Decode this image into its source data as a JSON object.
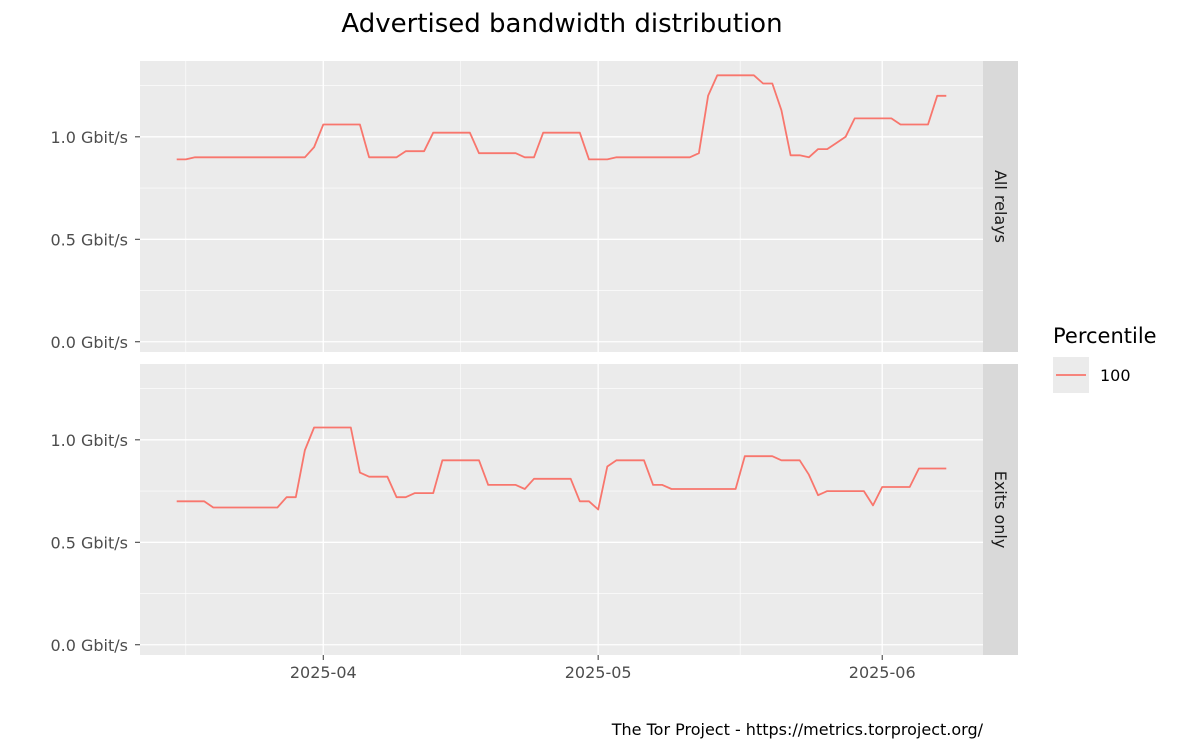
{
  "chart_data": {
    "type": "line",
    "title": "Advertised bandwidth distribution",
    "caption": "The Tor Project - https://metrics.torproject.org/",
    "x_unit": "date",
    "y_unit": "Gbit/s",
    "xlim": [
      "2025-03-12",
      "2025-06-12"
    ],
    "ylim": [
      -0.05,
      1.37
    ],
    "x_ticks": [
      "2025-04-01",
      "2025-05-01",
      "2025-06-01"
    ],
    "x_tick_labels": [
      "2025-04",
      "2025-05",
      "2025-06"
    ],
    "y_ticks": [
      0.0,
      0.5,
      1.0
    ],
    "y_tick_labels": [
      "0.0 Gbit/s",
      "0.5 Gbit/s",
      "1.0 Gbit/s"
    ],
    "grid": true,
    "legend": {
      "title": "Percentile",
      "position": "right",
      "entries": [
        "100"
      ]
    },
    "colors": {
      "series": "#f8766d",
      "panel": "#ebebeb",
      "strip": "#d9d9d9",
      "grid": "#ffffff"
    },
    "facets": [
      {
        "label": "All relays",
        "series": [
          {
            "name": "100",
            "points": [
              [
                "2025-03-16",
                0.89
              ],
              [
                "2025-03-17",
                0.89
              ],
              [
                "2025-03-18",
                0.9
              ],
              [
                "2025-03-19",
                0.9
              ],
              [
                "2025-03-20",
                0.9
              ],
              [
                "2025-03-21",
                0.9
              ],
              [
                "2025-03-22",
                0.9
              ],
              [
                "2025-03-23",
                0.9
              ],
              [
                "2025-03-24",
                0.9
              ],
              [
                "2025-03-25",
                0.9
              ],
              [
                "2025-03-26",
                0.9
              ],
              [
                "2025-03-27",
                0.9
              ],
              [
                "2025-03-28",
                0.9
              ],
              [
                "2025-03-29",
                0.9
              ],
              [
                "2025-03-30",
                0.9
              ],
              [
                "2025-03-31",
                0.95
              ],
              [
                "2025-04-01",
                1.06
              ],
              [
                "2025-04-02",
                1.06
              ],
              [
                "2025-04-03",
                1.06
              ],
              [
                "2025-04-04",
                1.06
              ],
              [
                "2025-04-05",
                1.06
              ],
              [
                "2025-04-06",
                0.9
              ],
              [
                "2025-04-07",
                0.9
              ],
              [
                "2025-04-08",
                0.9
              ],
              [
                "2025-04-09",
                0.9
              ],
              [
                "2025-04-10",
                0.93
              ],
              [
                "2025-04-11",
                0.93
              ],
              [
                "2025-04-12",
                0.93
              ],
              [
                "2025-04-13",
                1.02
              ],
              [
                "2025-04-14",
                1.02
              ],
              [
                "2025-04-15",
                1.02
              ],
              [
                "2025-04-16",
                1.02
              ],
              [
                "2025-04-17",
                1.02
              ],
              [
                "2025-04-18",
                0.92
              ],
              [
                "2025-04-19",
                0.92
              ],
              [
                "2025-04-20",
                0.92
              ],
              [
                "2025-04-21",
                0.92
              ],
              [
                "2025-04-22",
                0.92
              ],
              [
                "2025-04-23",
                0.9
              ],
              [
                "2025-04-24",
                0.9
              ],
              [
                "2025-04-25",
                1.02
              ],
              [
                "2025-04-26",
                1.02
              ],
              [
                "2025-04-27",
                1.02
              ],
              [
                "2025-04-28",
                1.02
              ],
              [
                "2025-04-29",
                1.02
              ],
              [
                "2025-04-30",
                0.89
              ],
              [
                "2025-05-01",
                0.89
              ],
              [
                "2025-05-02",
                0.89
              ],
              [
                "2025-05-03",
                0.9
              ],
              [
                "2025-05-04",
                0.9
              ],
              [
                "2025-05-05",
                0.9
              ],
              [
                "2025-05-06",
                0.9
              ],
              [
                "2025-05-07",
                0.9
              ],
              [
                "2025-05-08",
                0.9
              ],
              [
                "2025-05-09",
                0.9
              ],
              [
                "2025-05-10",
                0.9
              ],
              [
                "2025-05-11",
                0.9
              ],
              [
                "2025-05-12",
                0.92
              ],
              [
                "2025-05-13",
                1.2
              ],
              [
                "2025-05-14",
                1.3
              ],
              [
                "2025-05-15",
                1.3
              ],
              [
                "2025-05-16",
                1.3
              ],
              [
                "2025-05-17",
                1.3
              ],
              [
                "2025-05-18",
                1.3
              ],
              [
                "2025-05-19",
                1.26
              ],
              [
                "2025-05-20",
                1.26
              ],
              [
                "2025-05-21",
                1.13
              ],
              [
                "2025-05-22",
                0.91
              ],
              [
                "2025-05-23",
                0.91
              ],
              [
                "2025-05-24",
                0.9
              ],
              [
                "2025-05-25",
                0.94
              ],
              [
                "2025-05-26",
                0.94
              ],
              [
                "2025-05-27",
                0.97
              ],
              [
                "2025-05-28",
                1.0
              ],
              [
                "2025-05-29",
                1.09
              ],
              [
                "2025-05-30",
                1.09
              ],
              [
                "2025-05-31",
                1.09
              ],
              [
                "2025-06-01",
                1.09
              ],
              [
                "2025-06-02",
                1.09
              ],
              [
                "2025-06-03",
                1.06
              ],
              [
                "2025-06-04",
                1.06
              ],
              [
                "2025-06-05",
                1.06
              ],
              [
                "2025-06-06",
                1.06
              ],
              [
                "2025-06-07",
                1.2
              ],
              [
                "2025-06-08",
                1.2
              ]
            ]
          }
        ]
      },
      {
        "label": "Exits only",
        "series": [
          {
            "name": "100",
            "points": [
              [
                "2025-03-16",
                0.7
              ],
              [
                "2025-03-17",
                0.7
              ],
              [
                "2025-03-18",
                0.7
              ],
              [
                "2025-03-19",
                0.7
              ],
              [
                "2025-03-20",
                0.67
              ],
              [
                "2025-03-21",
                0.67
              ],
              [
                "2025-03-22",
                0.67
              ],
              [
                "2025-03-23",
                0.67
              ],
              [
                "2025-03-24",
                0.67
              ],
              [
                "2025-03-25",
                0.67
              ],
              [
                "2025-03-26",
                0.67
              ],
              [
                "2025-03-27",
                0.67
              ],
              [
                "2025-03-28",
                0.72
              ],
              [
                "2025-03-29",
                0.72
              ],
              [
                "2025-03-30",
                0.95
              ],
              [
                "2025-03-31",
                1.06
              ],
              [
                "2025-04-01",
                1.06
              ],
              [
                "2025-04-02",
                1.06
              ],
              [
                "2025-04-03",
                1.06
              ],
              [
                "2025-04-04",
                1.06
              ],
              [
                "2025-04-05",
                0.84
              ],
              [
                "2025-04-06",
                0.82
              ],
              [
                "2025-04-07",
                0.82
              ],
              [
                "2025-04-08",
                0.82
              ],
              [
                "2025-04-09",
                0.72
              ],
              [
                "2025-04-10",
                0.72
              ],
              [
                "2025-04-11",
                0.74
              ],
              [
                "2025-04-12",
                0.74
              ],
              [
                "2025-04-13",
                0.74
              ],
              [
                "2025-04-14",
                0.9
              ],
              [
                "2025-04-15",
                0.9
              ],
              [
                "2025-04-16",
                0.9
              ],
              [
                "2025-04-17",
                0.9
              ],
              [
                "2025-04-18",
                0.9
              ],
              [
                "2025-04-19",
                0.78
              ],
              [
                "2025-04-20",
                0.78
              ],
              [
                "2025-04-21",
                0.78
              ],
              [
                "2025-04-22",
                0.78
              ],
              [
                "2025-04-23",
                0.76
              ],
              [
                "2025-04-24",
                0.81
              ],
              [
                "2025-04-25",
                0.81
              ],
              [
                "2025-04-26",
                0.81
              ],
              [
                "2025-04-27",
                0.81
              ],
              [
                "2025-04-28",
                0.81
              ],
              [
                "2025-04-29",
                0.7
              ],
              [
                "2025-04-30",
                0.7
              ],
              [
                "2025-05-01",
                0.66
              ],
              [
                "2025-05-02",
                0.87
              ],
              [
                "2025-05-03",
                0.9
              ],
              [
                "2025-05-04",
                0.9
              ],
              [
                "2025-05-05",
                0.9
              ],
              [
                "2025-05-06",
                0.9
              ],
              [
                "2025-05-07",
                0.78
              ],
              [
                "2025-05-08",
                0.78
              ],
              [
                "2025-05-09",
                0.76
              ],
              [
                "2025-05-10",
                0.76
              ],
              [
                "2025-05-11",
                0.76
              ],
              [
                "2025-05-12",
                0.76
              ],
              [
                "2025-05-13",
                0.76
              ],
              [
                "2025-05-14",
                0.76
              ],
              [
                "2025-05-15",
                0.76
              ],
              [
                "2025-05-16",
                0.76
              ],
              [
                "2025-05-17",
                0.92
              ],
              [
                "2025-05-18",
                0.92
              ],
              [
                "2025-05-19",
                0.92
              ],
              [
                "2025-05-20",
                0.92
              ],
              [
                "2025-05-21",
                0.9
              ],
              [
                "2025-05-22",
                0.9
              ],
              [
                "2025-05-23",
                0.9
              ],
              [
                "2025-05-24",
                0.83
              ],
              [
                "2025-05-25",
                0.73
              ],
              [
                "2025-05-26",
                0.75
              ],
              [
                "2025-05-27",
                0.75
              ],
              [
                "2025-05-28",
                0.75
              ],
              [
                "2025-05-29",
                0.75
              ],
              [
                "2025-05-30",
                0.75
              ],
              [
                "2025-05-31",
                0.68
              ],
              [
                "2025-06-01",
                0.77
              ],
              [
                "2025-06-02",
                0.77
              ],
              [
                "2025-06-03",
                0.77
              ],
              [
                "2025-06-04",
                0.77
              ],
              [
                "2025-06-05",
                0.86
              ],
              [
                "2025-06-06",
                0.86
              ],
              [
                "2025-06-07",
                0.86
              ],
              [
                "2025-06-08",
                0.86
              ]
            ]
          }
        ]
      }
    ]
  }
}
